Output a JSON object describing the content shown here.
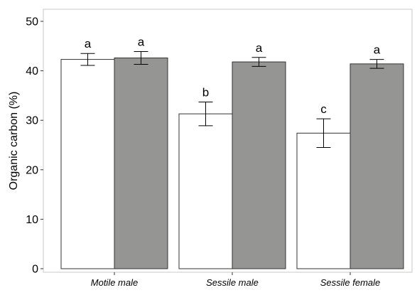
{
  "chart_data": {
    "type": "bar",
    "title": "",
    "xlabel": "",
    "ylabel": "Organic carbon (%)",
    "ylim": [
      0,
      50
    ],
    "yticks": [
      "0",
      "10",
      "20",
      "30",
      "40",
      "50"
    ],
    "categories": [
      "Motile male",
      "Sessile male",
      "Sessile female"
    ],
    "grid": false,
    "series": [
      {
        "color": "#ffffff",
        "values": [
          42.3,
          31.3,
          27.4
        ],
        "errors": [
          1.2,
          2.4,
          2.9
        ],
        "letters": [
          "a",
          "b",
          "c"
        ]
      },
      {
        "color": "#959694",
        "values": [
          42.6,
          41.8,
          41.4
        ],
        "errors": [
          1.3,
          0.9,
          0.9
        ],
        "letters": [
          "a",
          "a",
          "a"
        ]
      }
    ]
  }
}
